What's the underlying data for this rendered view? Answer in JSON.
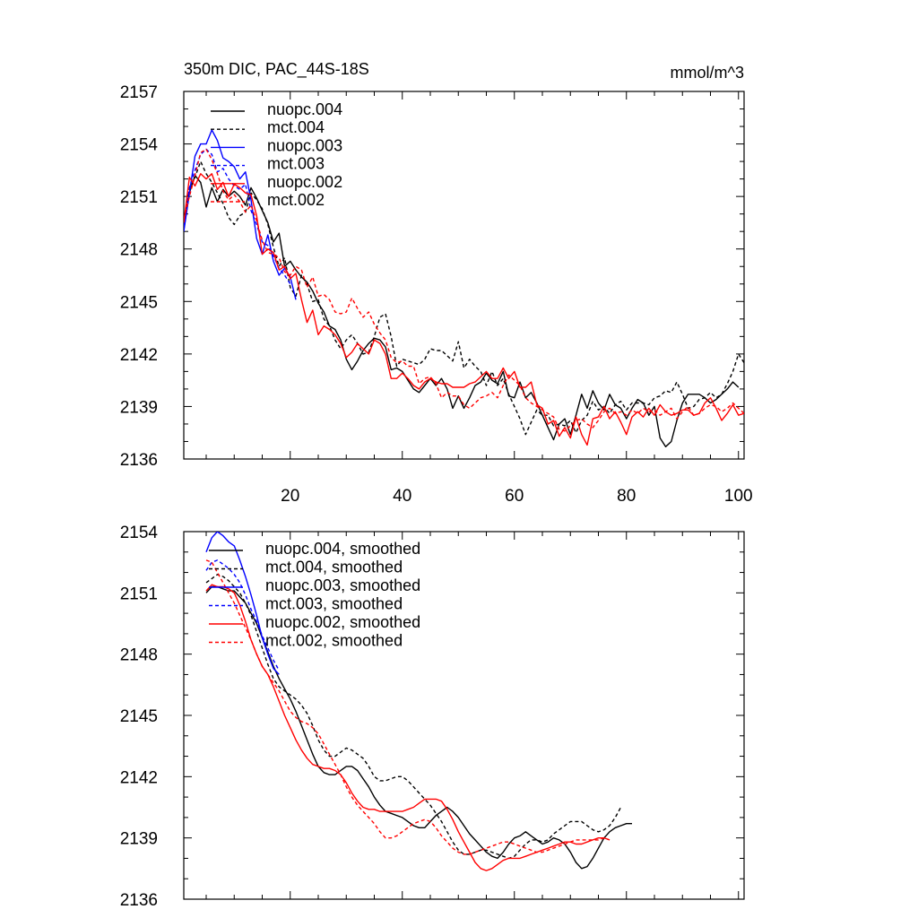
{
  "chart_data": [
    {
      "type": "line",
      "title": "350m DIC, PAC_44S-18S",
      "units": "mmol/m^3",
      "xlim": [
        1,
        101
      ],
      "ylim": [
        2136,
        2157
      ],
      "xticks": [
        20,
        40,
        60,
        80,
        100
      ],
      "yticks": [
        2136,
        2139,
        2142,
        2145,
        2148,
        2151,
        2154,
        2157
      ],
      "series": [
        {
          "name": "nuopc.004",
          "color": "#000000",
          "dash": "solid",
          "x_start": 1,
          "values": [
            2149.1,
            2151.2,
            2152.2,
            2151.8,
            2150.4,
            2151.5,
            2150.7,
            2151.4,
            2151.0,
            2151.3,
            2151.0,
            2150.5,
            2151.5,
            2150.9,
            2150.2,
            2149.5,
            2148.4,
            2148.9,
            2147.0,
            2147.3,
            2146.8,
            2146.4,
            2146.1,
            2145.6,
            2144.9,
            2144.4,
            2143.6,
            2143.4,
            2142.8,
            2141.7,
            2141.1,
            2141.6,
            2142.2,
            2142.6,
            2142.9,
            2142.8,
            2142.4,
            2141.1,
            2141.2,
            2141.0,
            2140.5,
            2140.0,
            2139.8,
            2140.2,
            2140.6,
            2140.2,
            2140.6,
            2140.0,
            2138.9,
            2139.6,
            2138.9,
            2139.5,
            2140.2,
            2140.4,
            2140.9,
            2140.5,
            2140.3,
            2141.0,
            2139.6,
            2139.5,
            2140.4,
            2139.5,
            2139.8,
            2139.2,
            2138.5,
            2137.8,
            2137.1,
            2138.0,
            2138.3,
            2137.4,
            2138.5,
            2139.7,
            2138.9,
            2139.9,
            2139.2,
            2138.8,
            2139.7,
            2139.1,
            2138.9,
            2138.3,
            2138.9,
            2139.4,
            2139.2,
            2138.5,
            2139.0,
            2137.2,
            2136.7,
            2137.0,
            2138.2,
            2139.2,
            2139.7,
            2139.7,
            2139.7,
            2139.5,
            2139.2,
            2139.4,
            2139.7,
            2140.0,
            2140.4,
            2140.1
          ]
        },
        {
          "name": "mct.004",
          "color": "#000000",
          "dash": "dashed",
          "x_start": 1,
          "values": [
            2149.6,
            2151.4,
            2152.1,
            2153.0,
            2152.3,
            2151.8,
            2151.2,
            2150.6,
            2149.8,
            2149.4,
            2149.9,
            2150.1,
            2151.2,
            2150.8,
            2150.3,
            2149.4,
            2148.1,
            2147.0,
            2147.5,
            2145.8,
            2145.3,
            2146.5,
            2146.0,
            2145.0,
            2145.1,
            2144.0,
            2143.6,
            2142.8,
            2142.3,
            2142.8,
            2143.1,
            2142.6,
            2142.0,
            2142.1,
            2143.0,
            2144.1,
            2144.3,
            2143.0,
            2141.3,
            2141.7,
            2141.6,
            2141.5,
            2141.4,
            2141.7,
            2142.3,
            2142.2,
            2142.2,
            2141.9,
            2141.6,
            2142.7,
            2141.2,
            2141.7,
            2141.3,
            2141.0,
            2140.2,
            2141.0,
            2140.2,
            2140.6,
            2139.7,
            2139.0,
            2138.3,
            2137.4,
            2138.1,
            2138.8,
            2138.5,
            2138.5,
            2137.9,
            2138.0,
            2137.9,
            2138.2,
            2137.5,
            2138.2,
            2138.5,
            2139.3,
            2138.8,
            2139.0,
            2138.6,
            2139.1,
            2139.3,
            2138.8,
            2139.2,
            2139.2,
            2139.2,
            2139.1,
            2139.5,
            2139.6,
            2139.9,
            2139.8,
            2140.4,
            2139.7,
            2138.9,
            2139.0,
            2139.4,
            2139.5,
            2139.8,
            2139.5,
            2139.7,
            2140.3,
            2141.0,
            2142.0,
            2141.5
          ]
        },
        {
          "name": "nuopc.003",
          "color": "#0000ff",
          "dash": "solid",
          "x_start": 1,
          "values": [
            2149.0,
            2151.2,
            2153.3,
            2154.0,
            2154.0,
            2154.8,
            2154.2,
            2153.2,
            2153.0,
            2152.7,
            2152.0,
            2152.4,
            2150.8,
            2148.6,
            2147.7,
            2148.8,
            2147.3,
            2146.5,
            2146.9,
            2146.4,
            2145.1
          ]
        },
        {
          "name": "mct.003",
          "color": "#0000ff",
          "dash": "dashed",
          "x_start": 1,
          "values": [
            2149.3,
            2151.5,
            2152.5,
            2153.4,
            2153.7,
            2153.4,
            2152.4,
            2152.6,
            2152.0,
            2151.6,
            2151.4,
            2151.7,
            2150.2,
            2149.4,
            2148.4,
            2148.2,
            2147.6,
            2146.9,
            2146.5,
            2146.0
          ]
        },
        {
          "name": "nuopc.002",
          "color": "#ff0000",
          "dash": "solid",
          "x_start": 1,
          "values": [
            2149.5,
            2152.1,
            2151.6,
            2152.3,
            2152.0,
            2152.3,
            2151.4,
            2151.8,
            2151.0,
            2151.7,
            2151.5,
            2151.2,
            2151.1,
            2149.9,
            2147.7,
            2148.0,
            2147.8,
            2146.8,
            2147.0,
            2146.3,
            2146.6,
            2145.1,
            2143.8,
            2144.5,
            2143.1,
            2143.6,
            2143.4,
            2143.1,
            2142.6,
            2141.8,
            2142.1,
            2142.6,
            2142.3,
            2142.0,
            2142.8,
            2142.6,
            2142.0,
            2140.6,
            2140.6,
            2140.9,
            2140.6,
            2140.2,
            2140.0,
            2140.4,
            2140.6,
            2140.4,
            2140.3,
            2140.3,
            2140.1,
            2140.1,
            2140.1,
            2140.3,
            2140.4,
            2140.7,
            2141.0,
            2140.6,
            2140.6,
            2141.2,
            2140.6,
            2141.0,
            2140.1,
            2140.1,
            2140.4,
            2139.1,
            2138.9,
            2138.0,
            2138.2,
            2137.3,
            2137.8,
            2137.2,
            2138.4,
            2137.4,
            2136.8,
            2138.3,
            2138.4,
            2139.0,
            2138.3,
            2138.7,
            2138.1,
            2137.4,
            2138.4,
            2138.7,
            2138.4,
            2138.9,
            2138.5,
            2139.1,
            2138.7,
            2138.5,
            2138.6,
            2138.8,
            2138.8,
            2138.5,
            2138.6,
            2139.2,
            2139.5,
            2138.9,
            2138.2,
            2138.6,
            2139.1,
            2138.5,
            2138.6
          ]
        },
        {
          "name": "mct.002",
          "color": "#ff0000",
          "dash": "dashed",
          "x_start": 1,
          "values": [
            2149.7,
            2151.0,
            2152.2,
            2153.5,
            2153.7,
            2153.1,
            2152.3,
            2151.3,
            2150.8,
            2151.1,
            2150.7,
            2150.1,
            2150.5,
            2149.6,
            2148.5,
            2147.8,
            2147.7,
            2147.5,
            2146.7,
            2146.5,
            2147.0,
            2146.8,
            2145.8,
            2146.4,
            2145.3,
            2145.4,
            2145.1,
            2144.4,
            2144.3,
            2144.4,
            2145.2,
            2144.6,
            2144.1,
            2144.4,
            2143.7,
            2143.2,
            2142.8,
            2141.8,
            2141.5,
            2141.6,
            2141.3,
            2141.3,
            2140.3,
            2140.6,
            2140.7,
            2140.3,
            2139.5,
            2139.8,
            2139.6,
            2139.6,
            2139.1,
            2138.9,
            2139.2,
            2139.5,
            2139.6,
            2139.8,
            2139.5,
            2140.2,
            2140.8,
            2140.5,
            2140.2,
            2139.5,
            2139.2,
            2139.0,
            2138.8,
            2138.6,
            2138.4,
            2137.7,
            2137.6,
            2137.9,
            2138.2,
            2138.3,
            2138.0,
            2137.8,
            2138.2,
            2138.7,
            2138.9,
            2138.6,
            2138.7,
            2138.5,
            2138.8,
            2138.6,
            2138.9,
            2138.7,
            2138.8,
            2138.5,
            2138.7,
            2138.9,
            2138.3,
            2138.7,
            2139.0,
            2138.5,
            2138.6,
            2138.9,
            2139.1,
            2139.0,
            2138.7,
            2138.9,
            2139.2,
            2138.9,
            2138.6
          ]
        }
      ]
    },
    {
      "type": "line",
      "title": "",
      "xlim": [
        1,
        101
      ],
      "ylim": [
        2136,
        2154
      ],
      "xticks": [
        20,
        40,
        60,
        80,
        100
      ],
      "yticks": [
        2136,
        2139,
        2142,
        2145,
        2148,
        2151,
        2154
      ],
      "series": [
        {
          "name": "nuopc.004, smoothed",
          "color": "#000000",
          "dash": "solid",
          "x_start": 5,
          "values": [
            2151.0,
            2151.3,
            2151.3,
            2151.2,
            2151.1,
            2151.1,
            2150.8,
            2150.5,
            2150.0,
            2149.5,
            2148.8,
            2148.1,
            2147.4,
            2146.8,
            2146.3,
            2145.8,
            2145.2,
            2144.5,
            2143.8,
            2143.1,
            2142.5,
            2142.2,
            2142.1,
            2142.1,
            2142.3,
            2142.5,
            2142.5,
            2142.3,
            2141.9,
            2141.5,
            2141.0,
            2140.6,
            2140.3,
            2140.2,
            2140.1,
            2140.0,
            2139.8,
            2139.6,
            2139.5,
            2139.5,
            2139.8,
            2140.1,
            2140.3,
            2140.5,
            2140.3,
            2140.0,
            2139.6,
            2139.2,
            2138.9,
            2138.6,
            2138.3,
            2138.1,
            2138.0,
            2138.3,
            2138.7,
            2139.0,
            2139.1,
            2139.3,
            2139.1,
            2138.9,
            2138.7,
            2138.8,
            2139.0,
            2138.9,
            2138.7,
            2138.3,
            2137.8,
            2137.5,
            2137.6,
            2138.0,
            2138.5,
            2139.0,
            2139.3,
            2139.5,
            2139.6,
            2139.7,
            2139.7
          ]
        },
        {
          "name": "mct.004, smoothed",
          "color": "#000000",
          "dash": "dashed",
          "x_start": 5,
          "values": [
            2151.5,
            2151.7,
            2151.9,
            2151.8,
            2151.6,
            2151.3,
            2151.0,
            2150.5,
            2149.9,
            2149.1,
            2148.3,
            2147.5,
            2146.8,
            2146.4,
            2146.2,
            2146.0,
            2145.8,
            2145.5,
            2145.1,
            2144.5,
            2143.8,
            2143.3,
            2143.0,
            2143.0,
            2143.2,
            2143.4,
            2143.3,
            2143.1,
            2142.9,
            2142.5,
            2142.0,
            2141.8,
            2141.8,
            2141.9,
            2142.0,
            2142.0,
            2141.8,
            2141.5,
            2141.2,
            2140.9,
            2140.6,
            2140.2,
            2139.8,
            2139.3,
            2138.8,
            2138.4,
            2138.2,
            2138.2,
            2138.3,
            2138.4,
            2138.4,
            2138.3,
            2138.2,
            2138.1,
            2138.0,
            2138.1,
            2138.4,
            2138.7,
            2138.9,
            2138.9,
            2138.8,
            2138.9,
            2139.2,
            2139.4,
            2139.6,
            2139.8,
            2139.8,
            2139.8,
            2139.6,
            2139.4,
            2139.3,
            2139.4,
            2139.6,
            2140.0,
            2140.5
          ]
        },
        {
          "name": "nuopc.003, smoothed",
          "color": "#0000ff",
          "dash": "solid",
          "x_start": 5,
          "values": [
            2153.0,
            2153.7,
            2154.0,
            2153.8,
            2153.5,
            2153.3,
            2152.6,
            2151.8,
            2150.9,
            2149.9,
            2148.8,
            2148.0,
            2147.3,
            2147.0
          ]
        },
        {
          "name": "mct.003, smoothed",
          "color": "#0000ff",
          "dash": "dashed",
          "x_start": 5,
          "values": [
            2152.1,
            2152.5,
            2152.6,
            2152.4,
            2152.2,
            2151.9,
            2151.5,
            2150.9,
            2150.2,
            2149.6,
            2148.9,
            2148.3,
            2147.7,
            2147.2
          ]
        },
        {
          "name": "nuopc.002, smoothed",
          "color": "#ff0000",
          "dash": "solid",
          "x_start": 5,
          "values": [
            2151.1,
            2151.4,
            2151.3,
            2151.3,
            2151.2,
            2151.0,
            2150.4,
            2149.6,
            2148.7,
            2148.0,
            2147.4,
            2147.0,
            2146.4,
            2145.7,
            2145.0,
            2144.4,
            2143.8,
            2143.3,
            2142.9,
            2142.6,
            2142.5,
            2142.4,
            2142.4,
            2142.3,
            2142.1,
            2141.7,
            2141.2,
            2140.8,
            2140.5,
            2140.4,
            2140.4,
            2140.3,
            2140.3,
            2140.3,
            2140.3,
            2140.3,
            2140.4,
            2140.5,
            2140.7,
            2140.9,
            2140.9,
            2140.9,
            2140.8,
            2140.4,
            2139.9,
            2139.3,
            2138.8,
            2138.3,
            2137.8,
            2137.5,
            2137.4,
            2137.5,
            2137.7,
            2137.9,
            2138.0,
            2138.0,
            2138.0,
            2138.1,
            2138.2,
            2138.3,
            2138.4,
            2138.5,
            2138.6,
            2138.7,
            2138.8,
            2138.8,
            2138.7,
            2138.7,
            2138.8,
            2138.9,
            2139.0,
            2139.0,
            2138.9
          ]
        },
        {
          "name": "mct.002, smoothed",
          "color": "#ff0000",
          "dash": "dashed",
          "x_start": 5,
          "values": [
            2152.6,
            2152.5,
            2152.0,
            2151.5,
            2151.0,
            2150.5,
            2149.9,
            2149.3,
            2148.7,
            2148.0,
            2147.4,
            2147.0,
            2146.6,
            2146.2,
            2145.7,
            2145.2,
            2144.9,
            2144.7,
            2144.6,
            2144.4,
            2144.1,
            2143.6,
            2143.1,
            2142.6,
            2142.1,
            2141.5,
            2141.0,
            2140.6,
            2140.3,
            2140.0,
            2139.7,
            2139.3,
            2139.0,
            2139.0,
            2139.1,
            2139.3,
            2139.5,
            2139.7,
            2139.8,
            2139.9,
            2139.8,
            2139.5,
            2139.1,
            2138.8,
            2138.5,
            2138.3,
            2138.2,
            2138.2,
            2138.3,
            2138.4,
            2138.5,
            2138.6,
            2138.7,
            2138.8,
            2138.8,
            2138.7,
            2138.6,
            2138.5,
            2138.4,
            2138.3,
            2138.3,
            2138.4,
            2138.5,
            2138.6,
            2138.7,
            2138.8,
            2138.9,
            2138.9,
            2138.9,
            2138.9,
            2138.9,
            2139.0,
            2138.9
          ]
        }
      ]
    }
  ]
}
